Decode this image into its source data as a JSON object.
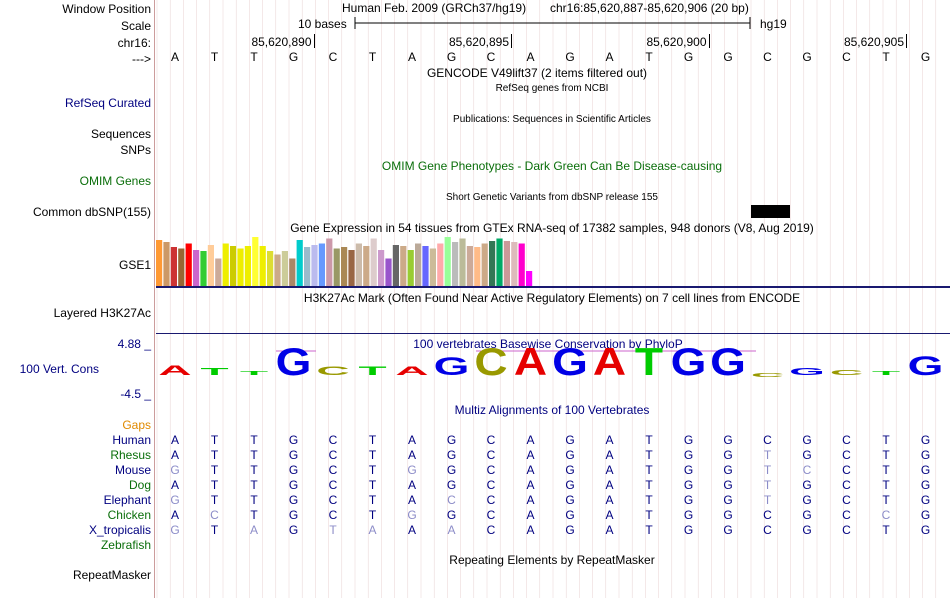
{
  "header": {
    "window_position_label": "Window Position",
    "assembly": "Human Feb. 2009 (GRCh37/hg19)",
    "position": "chr16:85,620,887-85,620,906 (20 bp)",
    "scale_label": "Scale",
    "scale_text": "10 bases",
    "scale_assembly": "hg19",
    "chrom_label": "chr16:",
    "coord_ticks": [
      "85,620,890",
      "85,620,895",
      "85,620,900",
      "85,620,905"
    ],
    "strand_label": "--->"
  },
  "reference_bases": [
    "A",
    "T",
    "T",
    "G",
    "C",
    "T",
    "A",
    "G",
    "C",
    "A",
    "G",
    "A",
    "T",
    "G",
    "G",
    "C",
    "G",
    "C",
    "T",
    "G"
  ],
  "tracks": {
    "gencode_title": "GENCODE V49lift37 (2 items filtered out)",
    "refseq_label": "RefSeq Curated",
    "refseq_title": "RefSeq genes from NCBI",
    "publications_title": "Publications: Sequences in Scientific Articles",
    "sequences_label": "Sequences",
    "snps_label": "SNPs",
    "omim_title": "OMIM Gene Phenotypes - Dark Green Can Be Disease-causing",
    "omim_label": "OMIM Genes",
    "dbsnp_title": "Short Genetic Variants from dbSNP release 155",
    "dbsnp_label": "Common dbSNP(155)",
    "gtex_title": "Gene Expression in 54 tissues from GTEx RNA-seq of 17382 samples, 948 donors (V8, Aug 2019)",
    "gtex_label": "GSE1",
    "h3k27ac_title": "H3K27Ac Mark (Often Found Near Active Regulatory Elements) on 7 cell lines from ENCODE",
    "h3k27ac_label": "Layered H3K27Ac",
    "cons_title": "100 vertebrates Basewise Conservation by PhyloP",
    "cons_label": "100 Vert. Cons",
    "cons_max": "4.88 _",
    "cons_min": "-4.5 _",
    "multiz_title": "Multiz Alignments of 100 Vertebrates",
    "gaps_label": "Gaps",
    "zebrafish_label": "Zebrafish",
    "repeat_title": "Repeating Elements by RepeatMasker",
    "repeat_label": "RepeatMasker"
  },
  "gtex_bars": {
    "values": [
      0.92,
      0.88,
      0.78,
      0.75,
      0.85,
      0.72,
      0.7,
      0.82,
      0.55,
      0.85,
      0.8,
      0.75,
      0.8,
      0.98,
      0.8,
      0.7,
      0.63,
      0.7,
      0.55,
      0.92,
      0.78,
      0.82,
      0.85,
      0.95,
      0.75,
      0.78,
      0.72,
      0.85,
      0.8,
      0.95,
      0.72,
      0.55,
      0.82,
      0.8,
      0.72,
      0.85,
      0.8,
      0.75,
      0.85,
      0.98,
      0.88,
      0.95,
      0.8,
      0.78,
      0.85,
      0.9,
      0.95,
      0.9,
      0.88,
      0.85,
      0.3
    ],
    "colors": [
      "#ff9933",
      "#cc9966",
      "#cc3333",
      "#996633",
      "#ff0000",
      "#cc66cc",
      "#33cc33",
      "#ffcc99",
      "#ccaa99",
      "#eeee00",
      "#cccc00",
      "#eeee00",
      "#eeee00",
      "#ffff33",
      "#eeee00",
      "#dddd33",
      "#ccaa88",
      "#cccc99",
      "#aa8866",
      "#00cccc",
      "#99bbcc",
      "#bbbbee",
      "#6699ff",
      "#cc99aa",
      "#999966",
      "#aa8855",
      "#996644",
      "#ccbbaa",
      "#ccaa88",
      "#ddcccc",
      "#cc99cc",
      "#9955cc",
      "#666666",
      "#ccaa88",
      "#99cc33",
      "#bbaa99",
      "#6666ff",
      "#ccbb99",
      "#ffaaaa",
      "#99ff99",
      "#bbbbbb",
      "#bbbb99",
      "#ccaa99",
      "#ffbb88",
      "#ccaa88",
      "#337755",
      "#00aa66",
      "#cc9999",
      "#ddbbbb",
      "#ff00cc",
      "#ff00ff"
    ]
  },
  "conservation": {
    "bases": [
      "A",
      "T",
      "T",
      "G",
      "C",
      "T",
      "A",
      "G",
      "C",
      "A",
      "G",
      "A",
      "T",
      "G",
      "G",
      "C",
      "G",
      "C",
      "T",
      "G"
    ],
    "scores": [
      0.35,
      0.25,
      0.15,
      1.0,
      0.3,
      0.3,
      0.3,
      0.65,
      1.0,
      1.0,
      1.0,
      1.0,
      1.0,
      1.0,
      1.0,
      -0.15,
      0.25,
      0.2,
      0.15,
      0.7
    ],
    "colors": {
      "A": "#e60000",
      "C": "#999900",
      "G": "#0000e6",
      "T": "#00cc00"
    }
  },
  "alignments": [
    {
      "species": "Human",
      "bases": [
        "A",
        "T",
        "T",
        "G",
        "C",
        "T",
        "A",
        "G",
        "C",
        "A",
        "G",
        "A",
        "T",
        "G",
        "G",
        "C",
        "G",
        "C",
        "T",
        "G"
      ],
      "mismatch": []
    },
    {
      "species": "Rhesus",
      "bases": [
        "A",
        "T",
        "T",
        "G",
        "C",
        "T",
        "A",
        "G",
        "C",
        "A",
        "G",
        "A",
        "T",
        "G",
        "G",
        "T",
        "G",
        "C",
        "T",
        "G"
      ],
      "mismatch": [
        15
      ]
    },
    {
      "species": "Mouse",
      "bases": [
        "G",
        "T",
        "T",
        "G",
        "C",
        "T",
        "G",
        "G",
        "C",
        "A",
        "G",
        "A",
        "T",
        "G",
        "G",
        "T",
        "C",
        "C",
        "T",
        "G"
      ],
      "mismatch": [
        0,
        6,
        15,
        16
      ]
    },
    {
      "species": "Dog",
      "bases": [
        "A",
        "T",
        "T",
        "G",
        "C",
        "T",
        "A",
        "G",
        "C",
        "A",
        "G",
        "A",
        "T",
        "G",
        "G",
        "T",
        "G",
        "C",
        "T",
        "G"
      ],
      "mismatch": [
        15
      ]
    },
    {
      "species": "Elephant",
      "bases": [
        "G",
        "T",
        "T",
        "G",
        "C",
        "T",
        "A",
        "C",
        "C",
        "A",
        "G",
        "A",
        "T",
        "G",
        "G",
        "T",
        "G",
        "C",
        "T",
        "G"
      ],
      "mismatch": [
        0,
        7,
        15
      ]
    },
    {
      "species": "Chicken",
      "bases": [
        "A",
        "C",
        "T",
        "G",
        "C",
        "T",
        "G",
        "G",
        "C",
        "A",
        "G",
        "A",
        "T",
        "G",
        "G",
        "C",
        "G",
        "C",
        "C",
        "G"
      ],
      "mismatch": [
        1,
        6,
        18
      ]
    },
    {
      "species": "X_tropicalis",
      "bases": [
        "G",
        "T",
        "A",
        "G",
        "T",
        "A",
        "A",
        "A",
        "C",
        "A",
        "G",
        "A",
        "T",
        "G",
        "G",
        "C",
        "G",
        "C",
        "T",
        "G"
      ],
      "mismatch": [
        0,
        2,
        4,
        5,
        7
      ]
    }
  ],
  "colors": {
    "navy": "#000080",
    "dark_green": "#0a6e0a",
    "orange": "#e08a00",
    "mismatch": "#8c8cc8"
  }
}
